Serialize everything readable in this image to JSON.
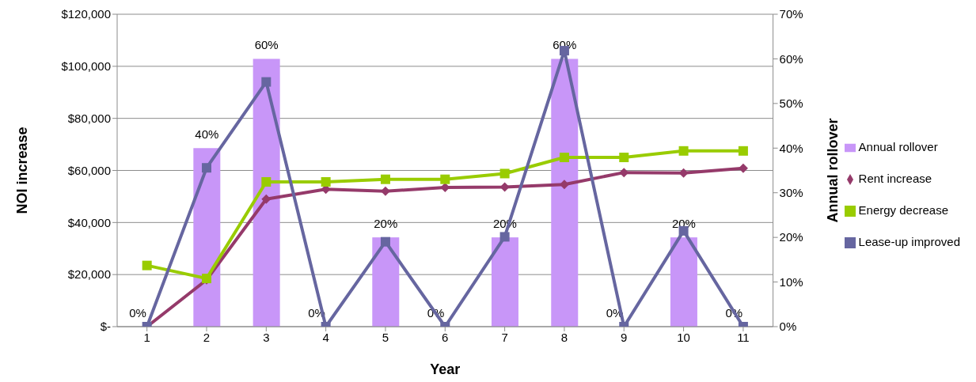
{
  "chart_data": {
    "type": "line",
    "xlabel": "Year",
    "ylabel": "NOI increase",
    "y2label": "Annual rollover",
    "categories": [
      "1",
      "2",
      "3",
      "4",
      "5",
      "6",
      "7",
      "8",
      "9",
      "10",
      "11"
    ],
    "series": [
      {
        "name": "Annual rollover",
        "type": "bar",
        "axis": "y2",
        "color": "#c896f8",
        "values": [
          0,
          40,
          60,
          0,
          20,
          0,
          20,
          60,
          0,
          20,
          0
        ],
        "value_labels": [
          "0%",
          "40%",
          "60%",
          "0%",
          "20%",
          "0%",
          "20%",
          "60%",
          "0%",
          "20%",
          "0%"
        ]
      },
      {
        "name": "Rent increase",
        "color": "#953a6a",
        "marker": "diamond",
        "values": [
          0,
          18000,
          49000,
          52800,
          52000,
          53500,
          53600,
          54600,
          59200,
          59000,
          60800
        ]
      },
      {
        "name": "Energy decrease",
        "color": "#99cc00",
        "marker": "square",
        "values": [
          23500,
          18500,
          55600,
          55600,
          56600,
          56600,
          58800,
          65000,
          65000,
          67500,
          67500
        ]
      },
      {
        "name": "Lease-up improved",
        "color": "#6666a0",
        "marker": "square",
        "values": [
          0,
          61000,
          94000,
          0,
          32600,
          0,
          34500,
          106000,
          0,
          36800,
          0
        ]
      }
    ],
    "ylim": [
      0,
      120000
    ],
    "yticks": [
      {
        "value": 0,
        "label": "$-"
      },
      {
        "value": 20000,
        "label": "$20,000"
      },
      {
        "value": 40000,
        "label": "$40,000"
      },
      {
        "value": 60000,
        "label": "$60,000"
      },
      {
        "value": 80000,
        "label": "$80,000"
      },
      {
        "value": 100000,
        "label": "$100,000"
      },
      {
        "value": 120000,
        "label": "$120,000"
      }
    ],
    "y2lim": [
      0,
      70
    ],
    "y2ticks": [
      {
        "value": 0,
        "label": "0%"
      },
      {
        "value": 10,
        "label": "10%"
      },
      {
        "value": 20,
        "label": "20%"
      },
      {
        "value": 30,
        "label": "30%"
      },
      {
        "value": 40,
        "label": "40%"
      },
      {
        "value": 50,
        "label": "50%"
      },
      {
        "value": 60,
        "label": "60%"
      },
      {
        "value": 70,
        "label": "70%"
      }
    ],
    "grid": "y",
    "legend": "right"
  }
}
